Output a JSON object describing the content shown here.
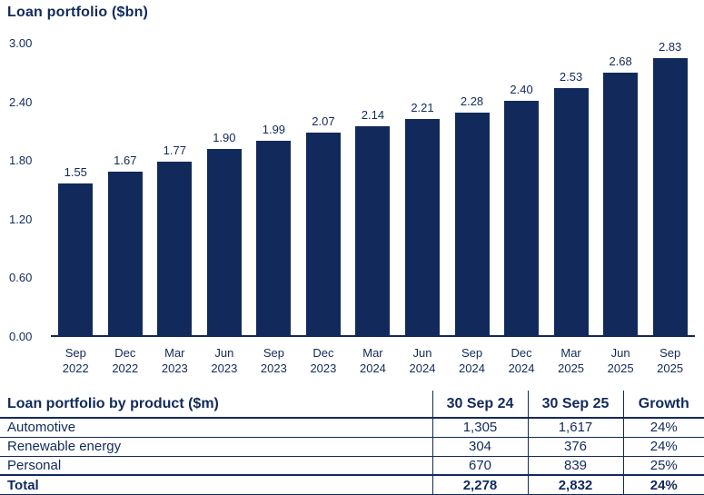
{
  "colors": {
    "navy": "#122A5B",
    "background": "#FFFFFF"
  },
  "chart_data": {
    "type": "bar",
    "title": "Loan portfolio ($bn)",
    "categories": [
      "Sep 2022",
      "Dec 2022",
      "Mar 2023",
      "Jun 2023",
      "Sep 2023",
      "Dec 2023",
      "Mar 2024",
      "Jun 2024",
      "Sep 2024",
      "Dec 2024",
      "Mar 2025",
      "Jun 2025",
      "Sep 2025"
    ],
    "values": [
      1.55,
      1.67,
      1.77,
      1.9,
      1.99,
      2.07,
      2.14,
      2.21,
      2.28,
      2.4,
      2.53,
      2.68,
      2.83
    ],
    "value_label_decimals": 2,
    "xlabel": "",
    "ylabel": "",
    "ylim": [
      0,
      3.0
    ],
    "ytick_labels": [
      "0.00",
      "0.60",
      "1.20",
      "1.80",
      "2.40",
      "3.00"
    ],
    "grid": false,
    "legend": null,
    "bar_color": "#122A5B"
  },
  "table": {
    "headers": [
      "Loan portfolio by product ($m)",
      "30 Sep 24",
      "30 Sep 25",
      "Growth"
    ],
    "rows": [
      [
        "Automotive",
        "1,305",
        "1,617",
        "24%"
      ],
      [
        "Renewable energy",
        "304",
        "376",
        "24%"
      ],
      [
        "Personal",
        "670",
        "839",
        "25%"
      ]
    ],
    "total_row": [
      "Total",
      "2,278",
      "2,832",
      "24%"
    ]
  }
}
